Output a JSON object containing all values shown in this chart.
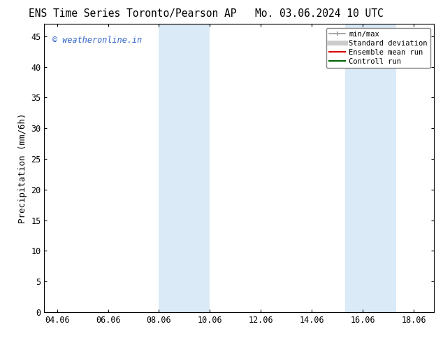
{
  "title_left": "ENS Time Series Toronto/Pearson AP",
  "title_right": "Mo. 03.06.2024 10 UTC",
  "xlabel": "",
  "ylabel": "Precipitation (mm/6h)",
  "watermark": "© weatheronline.in",
  "watermark_color": "#3366cc",
  "xlim_left": 3.5,
  "xlim_right": 18.8,
  "ylim_bottom": 0,
  "ylim_top": 47,
  "yticks": [
    0,
    5,
    10,
    15,
    20,
    25,
    30,
    35,
    40,
    45
  ],
  "xtick_labels": [
    "04.06",
    "06.06",
    "08.06",
    "10.06",
    "12.06",
    "14.06",
    "16.06",
    "18.06"
  ],
  "xtick_positions": [
    4,
    6,
    8,
    10,
    12,
    14,
    16,
    18
  ],
  "shaded_regions": [
    {
      "x_start": 8.0,
      "x_end": 10.0,
      "color": "#daeaf7"
    },
    {
      "x_start": 15.3,
      "x_end": 17.3,
      "color": "#daeaf7"
    }
  ],
  "legend_entries": [
    {
      "label": "min/max",
      "color": "#999999",
      "lw": 1.2,
      "style": "solid"
    },
    {
      "label": "Standard deviation",
      "color": "#cccccc",
      "lw": 5,
      "style": "solid"
    },
    {
      "label": "Ensemble mean run",
      "color": "#dd0000",
      "lw": 1.5,
      "style": "solid"
    },
    {
      "label": "Controll run",
      "color": "#006600",
      "lw": 1.5,
      "style": "solid"
    }
  ],
  "bg_color": "#ffffff",
  "spine_color": "#000000",
  "tick_label_fontsize": 8.5,
  "axis_label_fontsize": 9,
  "title_fontsize": 10.5
}
